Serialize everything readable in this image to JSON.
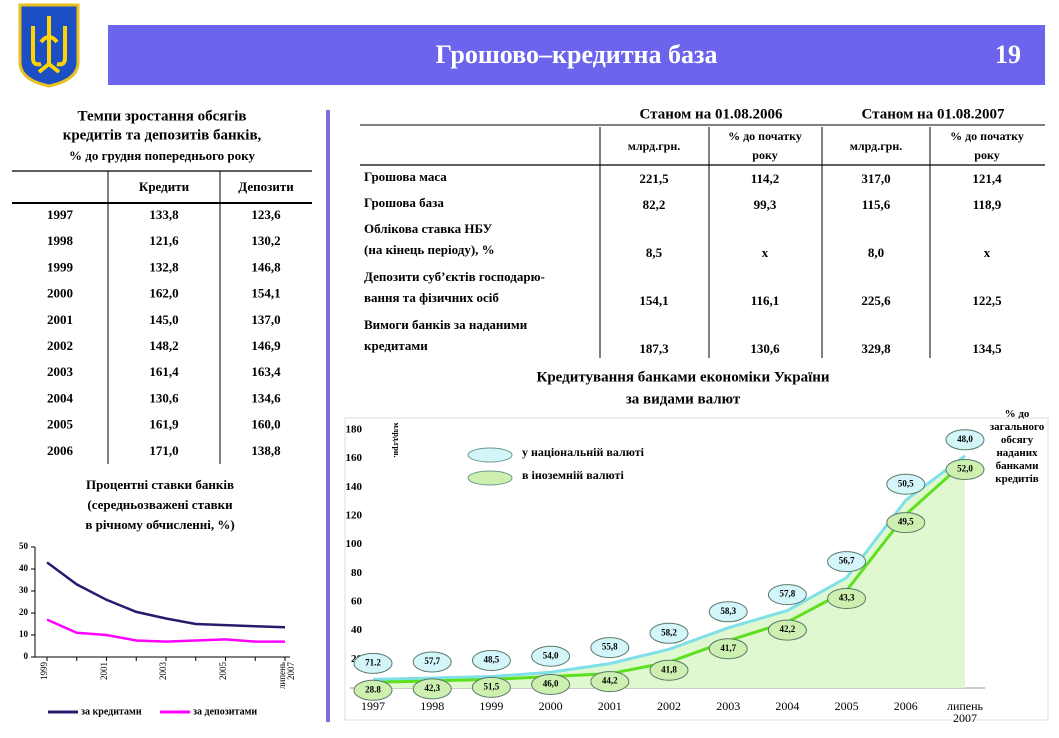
{
  "header": {
    "title": "Грошово–кредитна база",
    "page_number": "19"
  },
  "growth_table": {
    "title": [
      "Темпи зростання обсягів",
      "кредитів та депозитів банків,"
    ],
    "subtitle": "% до грудня попереднього року",
    "columns": [
      "Кредити",
      "Депозити"
    ],
    "rows": [
      [
        "1997",
        "133,8",
        "123,6"
      ],
      [
        "1998",
        "121,6",
        "130,2"
      ],
      [
        "1999",
        "132,8",
        "146,8"
      ],
      [
        "2000",
        "162,0",
        "154,1"
      ],
      [
        "2001",
        "145,0",
        "137,0"
      ],
      [
        "2002",
        "148,2",
        "146,9"
      ],
      [
        "2003",
        "161,4",
        "163,4"
      ],
      [
        "2004",
        "130,6",
        "134,6"
      ],
      [
        "2005",
        "161,9",
        "160,0"
      ],
      [
        "2006",
        "171,0",
        "138,8"
      ]
    ]
  },
  "money_table": {
    "periods": [
      "Станом на 01.08.2006",
      "Станом на 01.08.2007"
    ],
    "subheaders": [
      [
        "млрд.грн."
      ],
      [
        "% до початку",
        "року"
      ],
      [
        "млрд.грн."
      ],
      [
        "% до початку",
        "року"
      ]
    ],
    "rows": [
      {
        "label": [
          "Грошова маса"
        ],
        "values": [
          "221,5",
          "114,2",
          "317,0",
          "121,4"
        ]
      },
      {
        "label": [
          "Грошова база"
        ],
        "values": [
          "82,2",
          "99,3",
          "115,6",
          "118,9"
        ]
      },
      {
        "label": [
          "Облікова ставка НБУ",
          "(на кінець періоду), %"
        ],
        "values": [
          "8,5",
          "х",
          "8,0",
          "х"
        ]
      },
      {
        "label": [
          "Депозити суб’єктів господарю-",
          "вання та фізичних осіб"
        ],
        "values": [
          "154,1",
          "116,1",
          "225,6",
          "122,5"
        ]
      },
      {
        "label": [
          "Вимоги банків за наданими",
          "кредитами"
        ],
        "values": [
          "187,3",
          "130,6",
          "329,8",
          "134,5"
        ]
      }
    ]
  },
  "chart_data": [
    {
      "type": "line",
      "title": [
        "Процентні ставки банків",
        "(середньозважені ставки",
        "в річному обчисленні, %)"
      ],
      "categories": [
        "1999",
        null,
        "2001",
        null,
        "2003",
        null,
        "2005",
        null,
        "липень 2007"
      ],
      "series": [
        {
          "name": "за кредитами",
          "color": "#2a1a6e",
          "values": [
            43,
            33,
            26,
            20.5,
            17.5,
            15,
            14.5,
            14,
            13.5
          ]
        },
        {
          "name": "за депозитами",
          "color": "#ff00ff",
          "values": [
            17,
            11,
            10,
            7.5,
            7,
            7.5,
            8,
            7,
            7
          ]
        }
      ],
      "ylim": [
        0,
        50
      ],
      "yticks": [
        0,
        10,
        20,
        30,
        40,
        50
      ]
    },
    {
      "type": "area",
      "title": [
        "Кредитування банками економіки України",
        "за видами валют"
      ],
      "y_label": "млрд.грн.",
      "share_note": "% до загального обсягу наданих банками кредитів",
      "area_fill": "#e0f8d0",
      "categories": [
        "1997",
        "1998",
        "1999",
        "2000",
        "2001",
        "2002",
        "2003",
        "2004",
        "2005",
        "2006",
        "липень 2007"
      ],
      "series": [
        {
          "name": "у національній валюті",
          "color": "#7fe0e8",
          "bubble_fill": "#d4f6fa",
          "values": [
            6,
            7,
            8,
            11,
            17,
            27,
            42,
            54,
            77,
            131,
            162
          ],
          "share_labels": [
            "71.2",
            "57,7",
            "48,5",
            "54,0",
            "55,8",
            "58,2",
            "58,3",
            "57,8",
            "56,7",
            "50,5",
            "48,0"
          ]
        },
        {
          "name": "в іноземній валюті",
          "color": "#5ee020",
          "bubble_fill": "#cdf0b0",
          "values": [
            4,
            5,
            6,
            8,
            10,
            18,
            33,
            46,
            68,
            121,
            158
          ],
          "share_labels": [
            "28.8",
            "42,3",
            "51,5",
            "46,0",
            "44,2",
            "41,8",
            "41,7",
            "42,2",
            "43,3",
            "49,5",
            "52,0"
          ]
        }
      ],
      "ylim": [
        0,
        180
      ],
      "yticks": [
        0,
        20,
        40,
        60,
        80,
        100,
        120,
        140,
        160,
        180
      ]
    }
  ]
}
